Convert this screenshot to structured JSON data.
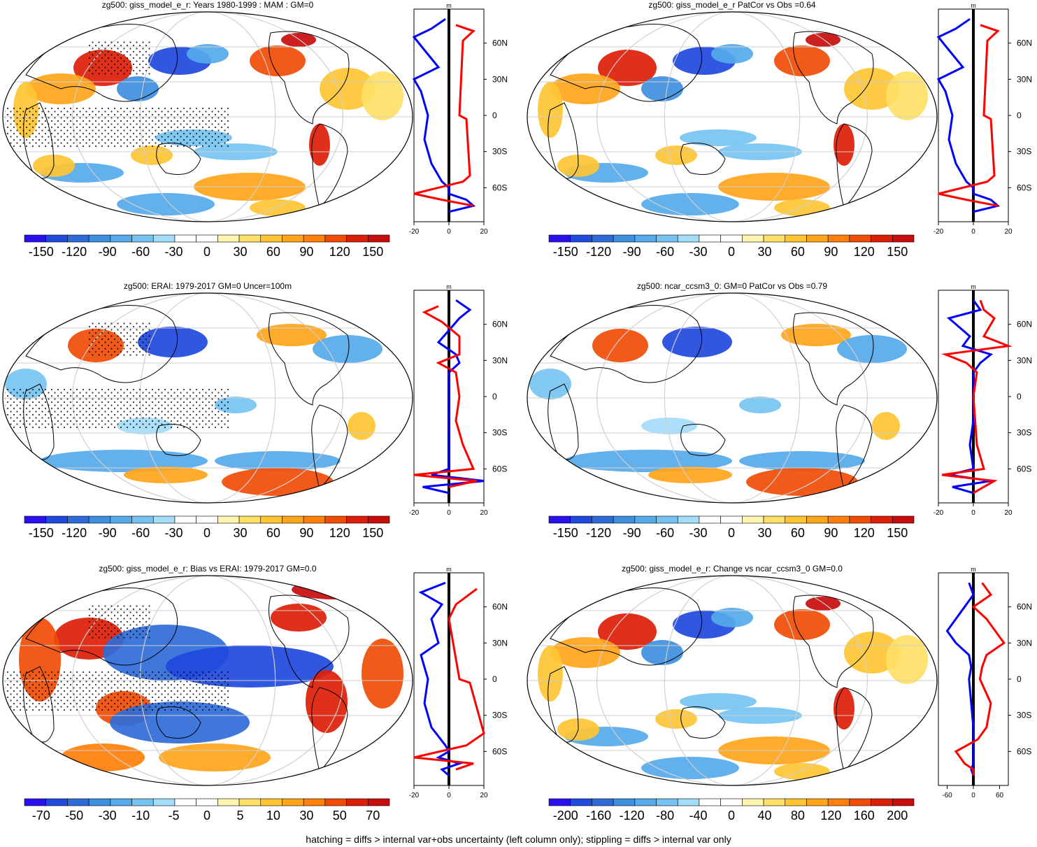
{
  "footer": "hatching = diffs > internal var+obs uncertainty (left column only); stippling = diffs > internal var only",
  "colors": {
    "palette_neg": [
      "#2a10ee",
      "#2049de",
      "#2f6bd8",
      "#3f8fde",
      "#55aaea",
      "#76c3f2",
      "#a5dcf8"
    ],
    "palette_pos": [
      "#fff4b0",
      "#ffdf66",
      "#ffc533",
      "#ffa51a",
      "#ff7f0a",
      "#f04c05",
      "#dd1e08",
      "#c80c0c"
    ],
    "zonal_model": "#0000ff",
    "zonal_diff": "#ff0000"
  },
  "chart_data": [
    {
      "type": "heatmap",
      "title": "zg500: giss_model_e_r: Years 1980-1999 : MAM : GM=0",
      "colorbar_ticks": [
        "-150",
        "-120",
        "-90",
        "-60",
        "-30",
        "0",
        "30",
        "60",
        "90",
        "120",
        "150"
      ],
      "zonal_mean": {
        "unit": "m",
        "xlim": [
          -20,
          20
        ],
        "xticks": [
          "-20",
          "0",
          "20"
        ],
        "lat_ticks": [
          "60N",
          "30N",
          "0",
          "30S",
          "60S"
        ],
        "model_lat": [
          80,
          72,
          65,
          56,
          40,
          30,
          20,
          0,
          -20,
          -40,
          -55,
          -60,
          -65,
          -70,
          -75,
          -80
        ],
        "model_val": [
          -2,
          -10,
          -20,
          -15,
          -6,
          -20,
          -16,
          -12,
          -14,
          -10,
          -4,
          0,
          0,
          10,
          14,
          0
        ],
        "diff_lat": [
          75,
          70,
          62,
          0,
          -3,
          -50,
          -55,
          -65,
          -70,
          -75
        ],
        "diff_val": [
          4,
          14,
          8,
          6,
          10,
          12,
          8,
          -20,
          -4,
          14
        ]
      },
      "hatching": true,
      "stippling": true
    },
    {
      "type": "heatmap",
      "title": "zg500: giss_model_e_r PatCor vs Obs =0.64",
      "colorbar_ticks": [
        "-150",
        "-120",
        "-90",
        "-60",
        "-30",
        "0",
        "30",
        "60",
        "90",
        "120",
        "150"
      ],
      "zonal_mean": {
        "unit": "m",
        "xlim": [
          -20,
          20
        ],
        "xticks": [
          "-20",
          "0",
          "20"
        ],
        "lat_ticks": [
          "60N",
          "30N",
          "0",
          "30S",
          "60S"
        ],
        "model_lat": [
          80,
          72,
          65,
          56,
          40,
          30,
          20,
          0,
          -20,
          -40,
          -55,
          -60,
          -65,
          -70,
          -75,
          -80
        ],
        "model_val": [
          -2,
          -10,
          -20,
          -15,
          -6,
          -20,
          -16,
          -12,
          -14,
          -10,
          -4,
          0,
          0,
          10,
          14,
          0
        ],
        "diff_lat": [
          75,
          70,
          62,
          0,
          -3,
          -50,
          -55,
          -65,
          -70,
          -75
        ],
        "diff_val": [
          4,
          14,
          8,
          6,
          10,
          12,
          8,
          -20,
          -4,
          14
        ]
      },
      "hatching": false,
      "stippling": false
    },
    {
      "type": "heatmap",
      "title": "zg500: ERAI: 1979-2017 GM=0 Uncer=100m",
      "colorbar_ticks": [
        "-150",
        "-120",
        "-90",
        "-60",
        "-30",
        "0",
        "30",
        "60",
        "90",
        "120",
        "150"
      ],
      "zonal_mean": {
        "unit": "m",
        "xlim": [
          -20,
          20
        ],
        "xticks": [
          "-20",
          "0",
          "20"
        ],
        "lat_ticks": [
          "60N",
          "30N",
          "0",
          "30S",
          "60S"
        ],
        "model_lat": [
          80,
          72,
          65,
          45,
          35,
          28,
          20,
          0,
          -20,
          -40,
          -60,
          -65,
          -70,
          -75,
          -80
        ],
        "model_val": [
          4,
          12,
          6,
          -6,
          4,
          6,
          0,
          0,
          0,
          0,
          0,
          -10,
          20,
          -15,
          0
        ],
        "diff_lat": [
          75,
          70,
          62,
          50,
          35,
          28,
          20,
          0,
          -20,
          -40,
          -60,
          -65,
          -70,
          -75
        ],
        "diff_val": [
          -6,
          -14,
          -4,
          6,
          6,
          -6,
          4,
          6,
          4,
          8,
          14,
          -20,
          16,
          0
        ]
      },
      "hatching": true,
      "stippling": true
    },
    {
      "type": "heatmap",
      "title": "zg500: ncar_ccsm3_0: GM=0 PatCor vs Obs =0.79",
      "colorbar_ticks": [
        "-150",
        "-120",
        "-90",
        "-60",
        "-30",
        "0",
        "30",
        "60",
        "90",
        "120",
        "150"
      ],
      "zonal_mean": {
        "unit": "m",
        "xlim": [
          -20,
          20
        ],
        "xticks": [
          "-20",
          "0",
          "20"
        ],
        "lat_ticks": [
          "60N",
          "30N",
          "0",
          "30S",
          "60S"
        ],
        "model_lat": [
          80,
          72,
          65,
          50,
          42,
          35,
          28,
          20,
          0,
          -20,
          -40,
          -60,
          -65,
          -70,
          -75,
          -80
        ],
        "model_val": [
          0,
          4,
          -14,
          -2,
          -6,
          10,
          4,
          0,
          0,
          0,
          -2,
          0,
          -14,
          10,
          -12,
          0
        ],
        "diff_lat": [
          80,
          72,
          65,
          50,
          42,
          35,
          28,
          20,
          0,
          -20,
          -40,
          -60,
          -65,
          -70,
          -75,
          -80
        ],
        "diff_val": [
          4,
          6,
          12,
          6,
          20,
          -16,
          -4,
          2,
          0,
          1,
          2,
          6,
          -18,
          12,
          6,
          0
        ]
      },
      "hatching": false,
      "stippling": false
    },
    {
      "type": "heatmap",
      "title": "zg500: giss_model_e_r: Bias vs ERAI: 1979-2017 GM=0.0",
      "colorbar_ticks": [
        "-70",
        "-50",
        "-30",
        "-10",
        "-5",
        "0",
        "5",
        "10",
        "30",
        "50",
        "70"
      ],
      "zonal_mean": {
        "unit": "m",
        "xlim": [
          -20,
          20
        ],
        "xticks": [
          "-20",
          "0",
          "20"
        ],
        "lat_ticks": [
          "60N",
          "30N",
          "0",
          "30S",
          "60S"
        ],
        "model_lat": [
          80,
          72,
          62,
          50,
          30,
          20,
          0,
          -20,
          -40,
          -55,
          -60,
          -65,
          -70,
          -75,
          -80
        ],
        "model_val": [
          -2,
          -16,
          -4,
          -10,
          -6,
          -16,
          -12,
          -14,
          -10,
          -2,
          0,
          -6,
          6,
          -4,
          0
        ],
        "diff_lat": [
          75,
          62,
          50,
          0,
          -3,
          -45,
          -55,
          -65,
          -70,
          -75
        ],
        "diff_val": [
          16,
          4,
          0,
          6,
          12,
          20,
          10,
          -20,
          14,
          4
        ]
      },
      "hatching": true,
      "stippling": true
    },
    {
      "type": "heatmap",
      "title": "zg500: giss_model_e_r: Change vs ncar_ccsm3_0 GM=0.0",
      "colorbar_ticks": [
        "-200",
        "-160",
        "-120",
        "-80",
        "-40",
        "0",
        "40",
        "80",
        "120",
        "160",
        "200"
      ],
      "zonal_mean": {
        "unit": "m",
        "xlim": [
          -80,
          80
        ],
        "xticks": [
          "-60",
          "0",
          "60"
        ],
        "lat_ticks": [
          "60N",
          "30N",
          "0",
          "30S",
          "60S"
        ],
        "model_lat": [
          80,
          70,
          60,
          50,
          40,
          30,
          20,
          10,
          0,
          -20,
          -40,
          -60,
          -70,
          -75,
          -80
        ],
        "model_val": [
          -10,
          0,
          -20,
          -40,
          -60,
          -40,
          -10,
          -5,
          -10,
          -5,
          0,
          0,
          0,
          -5,
          0
        ],
        "diff_lat": [
          80,
          70,
          60,
          50,
          40,
          30,
          20,
          10,
          0,
          -20,
          -40,
          -50,
          -60,
          -70,
          -75,
          -80
        ],
        "diff_val": [
          20,
          40,
          0,
          30,
          50,
          70,
          30,
          20,
          15,
          40,
          30,
          10,
          -40,
          -20,
          0,
          0
        ]
      },
      "hatching": false,
      "stippling": false
    }
  ]
}
